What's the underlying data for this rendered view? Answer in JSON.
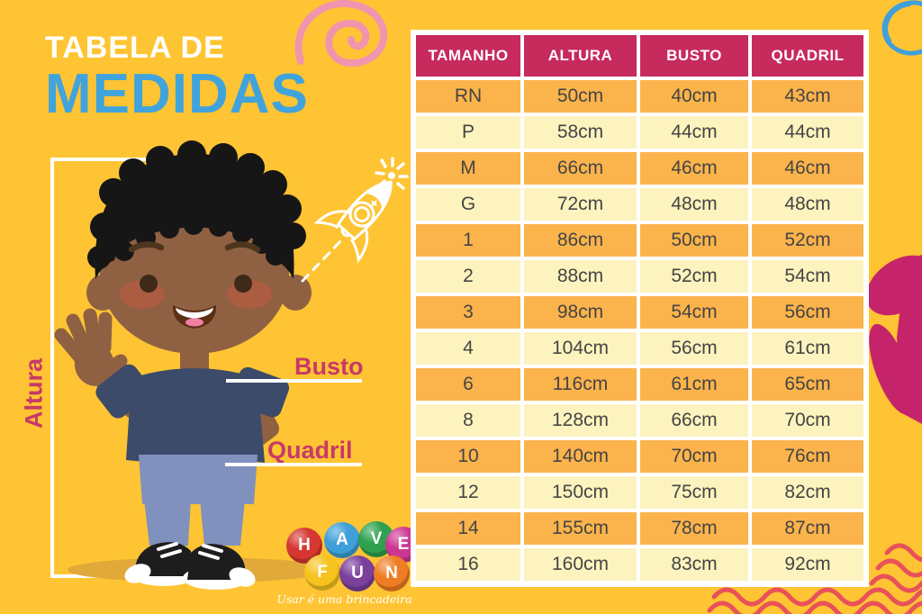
{
  "title": {
    "line1": "TABELA DE",
    "line2": "MEDIDAS",
    "line1_color": "#FFFFFF",
    "line2_color": "#41A3DC"
  },
  "labels": {
    "altura": "Altura",
    "busto": "Busto",
    "quadril": "Quadril",
    "color": "#C63A67"
  },
  "logo": {
    "balls": [
      {
        "letter": "H",
        "color": "#D63731"
      },
      {
        "letter": "A",
        "color": "#3E9FD9"
      },
      {
        "letter": "V",
        "color": "#2FA14E"
      },
      {
        "letter": "E",
        "color": "#CC3693"
      },
      {
        "letter": "F",
        "color": "#F6C21E"
      },
      {
        "letter": "U",
        "color": "#7B3F9C"
      },
      {
        "letter": "N",
        "color": "#EF7D23"
      }
    ],
    "tagline": "Usar é uma brincadeira"
  },
  "chart_data": {
    "type": "table",
    "title": "Tabela de Medidas",
    "columns": [
      "TAMANHO",
      "ALTURA",
      "BUSTO",
      "QUADRIL"
    ],
    "rows": [
      [
        "RN",
        "50cm",
        "40cm",
        "43cm"
      ],
      [
        "P",
        "58cm",
        "44cm",
        "44cm"
      ],
      [
        "M",
        "66cm",
        "46cm",
        "46cm"
      ],
      [
        "G",
        "72cm",
        "48cm",
        "48cm"
      ],
      [
        "1",
        "86cm",
        "50cm",
        "52cm"
      ],
      [
        "2",
        "88cm",
        "52cm",
        "54cm"
      ],
      [
        "3",
        "98cm",
        "54cm",
        "56cm"
      ],
      [
        "4",
        "104cm",
        "56cm",
        "61cm"
      ],
      [
        "6",
        "116cm",
        "61cm",
        "65cm"
      ],
      [
        "8",
        "128cm",
        "66cm",
        "70cm"
      ],
      [
        "10",
        "140cm",
        "70cm",
        "76cm"
      ],
      [
        "12",
        "150cm",
        "75cm",
        "82cm"
      ],
      [
        "14",
        "155cm",
        "78cm",
        "87cm"
      ],
      [
        "16",
        "160cm",
        "83cm",
        "92cm"
      ]
    ],
    "header_bg": "#C72A5D",
    "header_text_color": "#FFFFFF",
    "row_colors": [
      "#FBB34B",
      "#FCF3BE"
    ],
    "cell_text_color": "#454545"
  },
  "colors": {
    "background": "#FEC433",
    "spiral_doodle": "#F194AE",
    "circle_doodle": "#3FA0DB",
    "heart_doodle": "#C5246A",
    "waves_doodle": "#E85159",
    "bracket": "#FFFFFF",
    "boy_skin": "#8F6142",
    "boy_shirt": "#3C4B69",
    "boy_jeans": "#8191BD",
    "boy_hair": "#161616",
    "shadow": "#E0A93A"
  }
}
